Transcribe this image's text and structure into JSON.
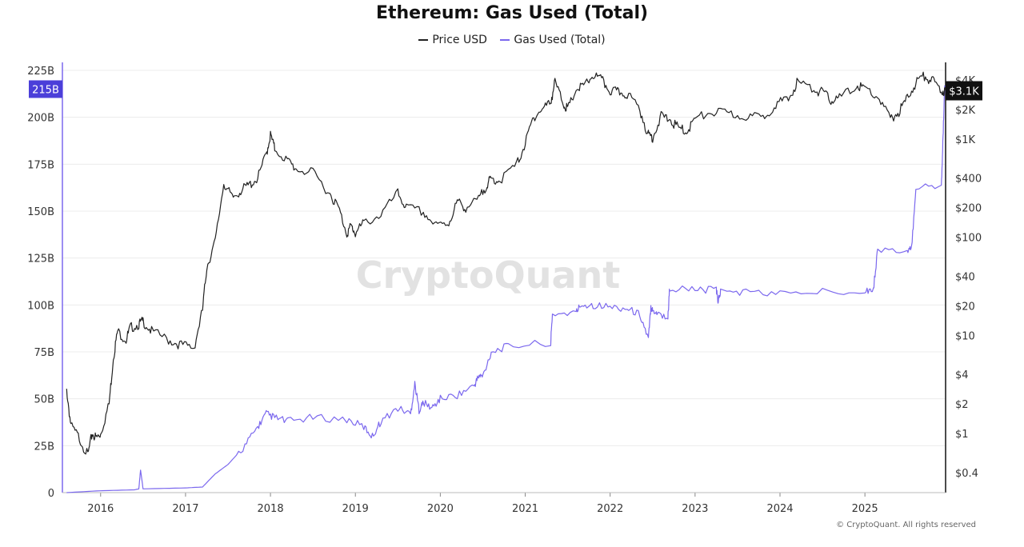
{
  "title": "Ethereum: Gas Used (Total)",
  "legend": [
    {
      "label": "Price USD",
      "color": "#222222"
    },
    {
      "label": "Gas Used (Total)",
      "color": "#7b68ee"
    }
  ],
  "watermark": "CryptoQuant",
  "footer": "© CryptoQuant. All rights reserved",
  "badges": {
    "left": "215B",
    "right": "$3.1K"
  },
  "chart_data": {
    "type": "line",
    "title": "Ethereum: Gas Used (Total)",
    "xlabel": "",
    "ylabel": "",
    "x_ticks": [
      "2016",
      "2017",
      "2018",
      "2019",
      "2020",
      "2021",
      "2022",
      "2023",
      "2024",
      "2025"
    ],
    "xlim": [
      2015.55,
      2025.95
    ],
    "y_left": {
      "ticks": [
        "0",
        "25B",
        "50B",
        "75B",
        "100B",
        "125B",
        "150B",
        "175B",
        "200B",
        "225B"
      ],
      "values": [
        0,
        25,
        50,
        75,
        100,
        125,
        150,
        175,
        200,
        225
      ],
      "ylim": [
        0,
        225
      ],
      "unit": "B"
    },
    "y_right": {
      "scale": "log",
      "ticks": [
        "$0.4",
        "$1",
        "$2",
        "$4",
        "$10",
        "$20",
        "$40",
        "$100",
        "$200",
        "$400",
        "$1K",
        "$2K",
        "$4K"
      ],
      "values": [
        0.4,
        1,
        2,
        4,
        10,
        20,
        40,
        100,
        200,
        400,
        1000,
        2000,
        4000
      ],
      "ylim": [
        0.25,
        5000
      ]
    },
    "series": [
      {
        "name": "Gas Used (Total)",
        "axis": "left",
        "color": "#7b68ee",
        "x": [
          2015.6,
          2016.0,
          2016.4,
          2016.45,
          2016.47,
          2016.5,
          2017.0,
          2017.2,
          2017.35,
          2017.5,
          2017.7,
          2017.85,
          2017.95,
          2018.05,
          2018.2,
          2018.5,
          2018.9,
          2019.1,
          2019.2,
          2019.3,
          2019.5,
          2019.65,
          2019.7,
          2019.75,
          2019.8,
          2019.9,
          2020.0,
          2020.2,
          2020.4,
          2020.45,
          2020.5,
          2020.6,
          2020.8,
          2021.3,
          2021.32,
          2021.6,
          2021.65,
          2021.8,
          2022.0,
          2022.2,
          2022.35,
          2022.45,
          2022.48,
          2022.5,
          2022.55,
          2022.68,
          2022.7,
          2023.0,
          2023.25,
          2023.27,
          2023.3,
          2023.6,
          2024.0,
          2024.5,
          2025.0,
          2025.1,
          2025.15,
          2025.5,
          2025.55,
          2025.6,
          2025.9,
          2025.92,
          2025.94
        ],
        "values": [
          0,
          1,
          1.5,
          2,
          12,
          2,
          2.5,
          3,
          10,
          15,
          25,
          35,
          42,
          40,
          38,
          40,
          39,
          35,
          30,
          38,
          45,
          42,
          58,
          44,
          48,
          45,
          50,
          52,
          57,
          62,
          62,
          75,
          78,
          80,
          95,
          96,
          100,
          100,
          99,
          98,
          95,
          82,
          99,
          97,
          96,
          93,
          109,
          108,
          108,
          102,
          107,
          107,
          106,
          107,
          108,
          108,
          130,
          128,
          130,
          163,
          163,
          190,
          217
        ]
      },
      {
        "name": "Price USD",
        "axis": "right",
        "color": "#222222",
        "x": [
          2015.6,
          2015.65,
          2015.75,
          2015.85,
          2015.9,
          2015.95,
          2016.0,
          2016.1,
          2016.15,
          2016.2,
          2016.3,
          2016.35,
          2016.45,
          2016.5,
          2016.6,
          2016.8,
          2016.95,
          2017.1,
          2017.2,
          2017.25,
          2017.35,
          2017.45,
          2017.55,
          2017.65,
          2017.75,
          2017.85,
          2017.95,
          2018.0,
          2018.05,
          2018.2,
          2018.3,
          2018.5,
          2018.7,
          2018.8,
          2018.9,
          2018.95,
          2019.0,
          2019.1,
          2019.3,
          2019.5,
          2019.6,
          2019.8,
          2019.95,
          2020.1,
          2020.2,
          2020.3,
          2020.45,
          2020.55,
          2020.6,
          2020.7,
          2020.9,
          2021.0,
          2021.1,
          2021.2,
          2021.3,
          2021.35,
          2021.45,
          2021.5,
          2021.6,
          2021.7,
          2021.8,
          2021.9,
          2022.0,
          2022.1,
          2022.2,
          2022.35,
          2022.45,
          2022.5,
          2022.6,
          2022.7,
          2022.8,
          2022.9,
          2023.0,
          2023.2,
          2023.4,
          2023.6,
          2023.8,
          2023.95,
          2024.1,
          2024.2,
          2024.4,
          2024.5,
          2024.6,
          2024.7,
          2024.9,
          2025.0,
          2025.15,
          2025.3,
          2025.4,
          2025.5,
          2025.6,
          2025.7,
          2025.8,
          2025.9,
          2025.95
        ],
        "values": [
          2.8,
          1.2,
          0.9,
          0.6,
          1.0,
          0.9,
          1.0,
          2.0,
          6.0,
          11.0,
          9.0,
          12.0,
          13.0,
          14.0,
          11.0,
          9.0,
          8.0,
          7.5,
          18.0,
          50.0,
          90.0,
          360.0,
          250.0,
          300.0,
          340.0,
          400.0,
          700.0,
          1100.0,
          800.0,
          600.0,
          500.0,
          450.0,
          280.0,
          200.0,
          110.0,
          130.0,
          110.0,
          140.0,
          170.0,
          280.0,
          200.0,
          180.0,
          130.0,
          140.0,
          230.0,
          200.0,
          240.0,
          350.0,
          390.0,
          380.0,
          550.0,
          900.0,
          1700.0,
          2000.0,
          2400.0,
          3800.0,
          2300.0,
          2000.0,
          3200.0,
          3500.0,
          4500.0,
          4000.0,
          3100.0,
          3000.0,
          2900.0,
          2000.0,
          1100.0,
          1050.0,
          1700.0,
          1600.0,
          1300.0,
          1200.0,
          1600.0,
          1900.0,
          1800.0,
          1700.0,
          1650.0,
          2300.0,
          2500.0,
          3800.0,
          3200.0,
          3000.0,
          2500.0,
          2600.0,
          3500.0,
          3300.0,
          2700.0,
          1600.0,
          1900.0,
          2600.0,
          3800.0,
          4400.0,
          3900.0,
          3100.0,
          3100.0
        ]
      }
    ]
  }
}
